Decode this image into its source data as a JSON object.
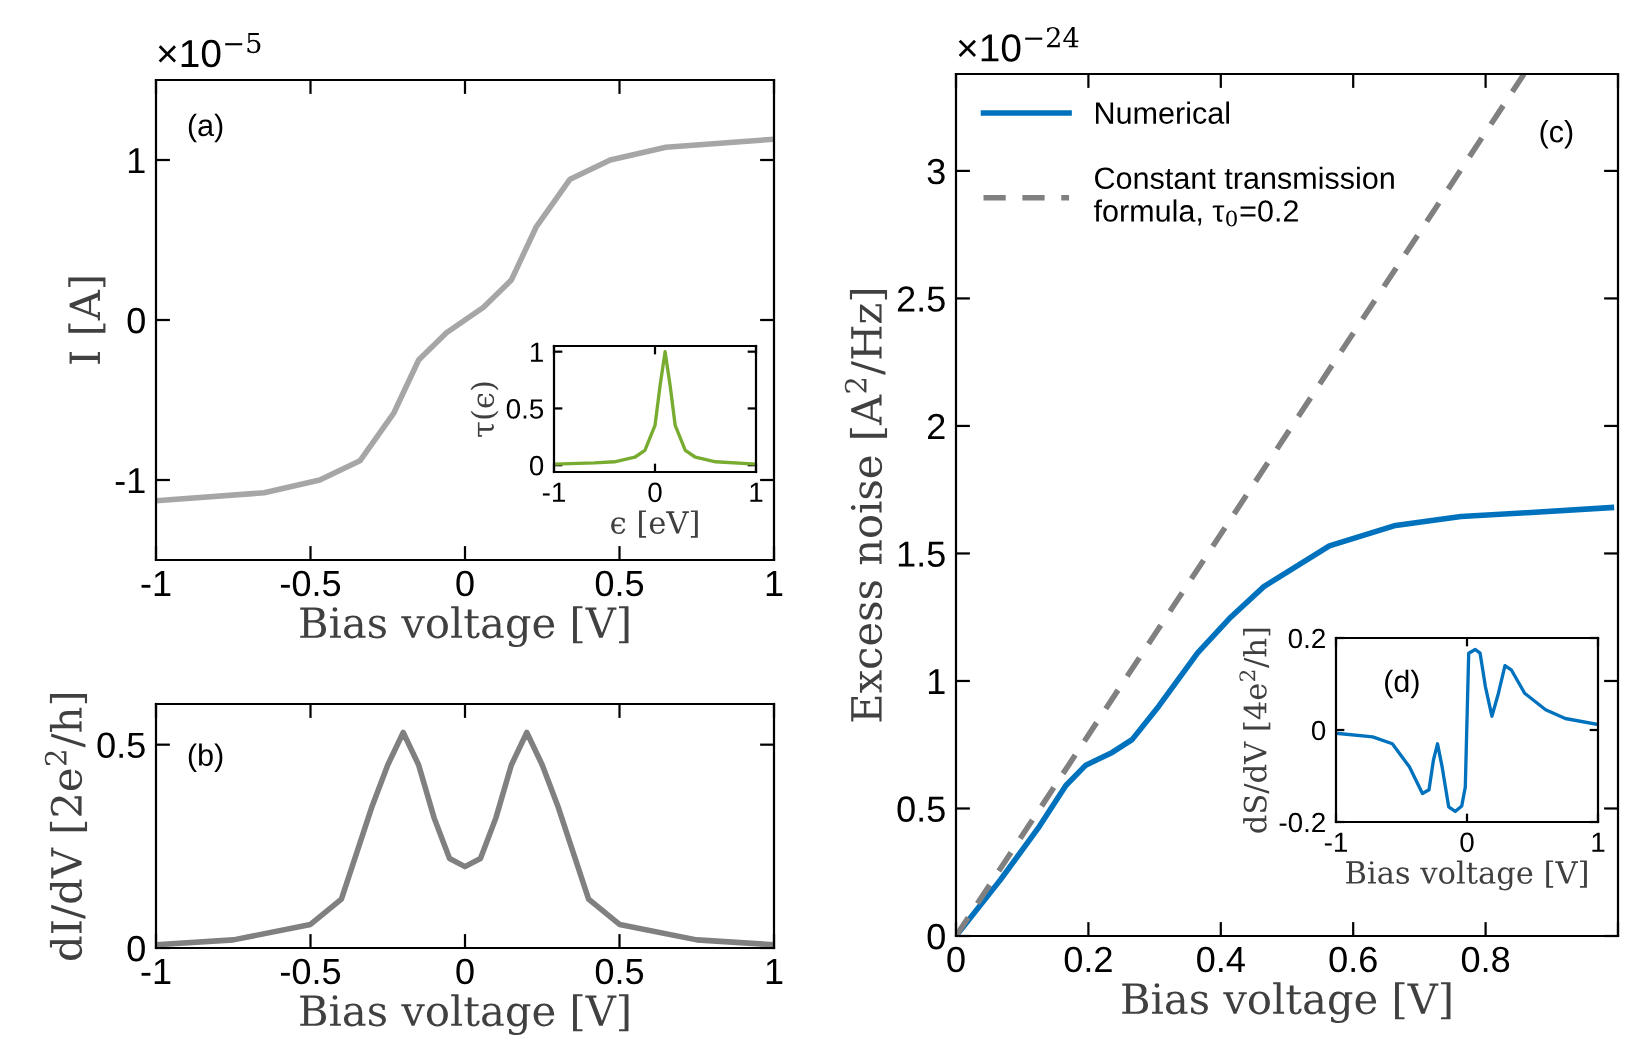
{
  "chart_data": [
    {
      "type": "line",
      "xlabel": "Bias voltage [V]",
      "ylabel": "I [A]",
      "annotations": [
        "(a)",
        "×10$^{−5}$"
      ],
      "xlim": [
        -1,
        1
      ],
      "ylim": [
        -1.5,
        1.5
      ],
      "xticks": [
        -1,
        -0.5,
        0,
        0.5,
        1
      ],
      "yticks": [
        -1,
        0,
        1
      ],
      "series": [
        {
          "color": "#a6a6a6",
          "x": [
            -1,
            -0.65,
            -0.47,
            -0.34,
            -0.23,
            -0.15,
            -0.06,
            0,
            0.06,
            0.15,
            0.23,
            0.34,
            0.47,
            0.65,
            1
          ],
          "values": [
            -1.13,
            -1.08,
            -1.0,
            -0.88,
            -0.58,
            -0.25,
            -0.08,
            0,
            0.08,
            0.25,
            0.58,
            0.88,
            1.0,
            1.08,
            1.13
          ]
        }
      ]
    },
    {
      "type": "line",
      "xlabel": "ϵ [eV]",
      "ylabel": "τ(ϵ)",
      "xlim": [
        -1,
        1
      ],
      "ylim": [
        -0.06,
        1.05
      ],
      "xticks": [
        -1,
        0,
        1
      ],
      "yticks": [
        0,
        0.5,
        1
      ],
      "series": [
        {
          "color": "#77ac30",
          "x": [
            -1,
            -0.6,
            -0.4,
            -0.2,
            -0.1,
            0,
            0.05,
            0.1,
            0.15,
            0.2,
            0.3,
            0.4,
            0.6,
            1
          ],
          "values": [
            0.01,
            0.02,
            0.03,
            0.07,
            0.13,
            0.35,
            0.7,
            1.0,
            0.7,
            0.35,
            0.13,
            0.07,
            0.03,
            0.01
          ]
        }
      ]
    },
    {
      "type": "line",
      "xlabel": "Bias voltage [V]",
      "ylabel": "dI/dV [2e$^{2}$/h]",
      "annotations": [
        "(b)"
      ],
      "xlim": [
        -1,
        1
      ],
      "ylim": [
        0,
        0.6
      ],
      "xticks": [
        -1,
        -0.5,
        0,
        0.5,
        1
      ],
      "yticks": [
        0,
        0.5
      ],
      "series": [
        {
          "color": "#808080",
          "x": [
            -1,
            -0.75,
            -0.5,
            -0.4,
            -0.3,
            -0.25,
            -0.2,
            -0.15,
            -0.1,
            -0.05,
            0,
            0.05,
            0.1,
            0.15,
            0.2,
            0.25,
            0.3,
            0.4,
            0.5,
            0.75,
            1
          ],
          "values": [
            0.008,
            0.02,
            0.058,
            0.12,
            0.35,
            0.45,
            0.53,
            0.45,
            0.32,
            0.22,
            0.2,
            0.22,
            0.32,
            0.45,
            0.53,
            0.45,
            0.35,
            0.12,
            0.058,
            0.02,
            0.008
          ]
        }
      ]
    },
    {
      "type": "line",
      "xlabel": "Bias voltage [V]",
      "ylabel": "Excess noise [A$^{2}$/Hz]",
      "annotations": [
        "(c)",
        "×10$^{−24}$"
      ],
      "xlim": [
        0,
        1
      ],
      "ylim": [
        0,
        3.38
      ],
      "xticks": [
        0,
        0.2,
        0.4,
        0.6,
        0.8,
        {
          "value": 1,
          "label": null
        }
      ],
      "yticks": [
        0,
        0.5,
        1,
        1.5,
        2,
        2.5,
        3
      ],
      "legend": "top left",
      "series": [
        {
          "name": "Numerical",
          "color": "#0072bd",
          "line_style": "solid",
          "x": [
            0,
            0.067,
            0.126,
            0.166,
            0.196,
            0.236,
            0.266,
            0.306,
            0.365,
            0.415,
            0.465,
            0.564,
            0.664,
            0.763,
            0.863,
            0.99
          ],
          "values": [
            0,
            0.22,
            0.43,
            0.59,
            0.67,
            0.72,
            0.77,
            0.9,
            1.11,
            1.25,
            1.37,
            1.53,
            1.61,
            1.645,
            1.66,
            1.68
          ]
        },
        {
          "name": "Constant transmission\nformula, τ$_{0}$=0.2",
          "color": "#808080",
          "line_style": "dashed",
          "x": [
            0,
            0.858
          ],
          "values": [
            0,
            3.38
          ]
        }
      ]
    },
    {
      "type": "line",
      "xlabel": "Bias voltage [V]",
      "ylabel": "dS/dV [4e$^{2}$/h]",
      "annotations": [
        "(d)"
      ],
      "xlim": [
        -1,
        1
      ],
      "ylim": [
        -0.2,
        0.2
      ],
      "xticks": [
        -1,
        0,
        1
      ],
      "yticks": [
        -0.2,
        0,
        0.2
      ],
      "series": [
        {
          "color": "#0072bd",
          "x": [
            -1,
            -0.72,
            -0.57,
            -0.44,
            -0.34,
            -0.29,
            -0.256,
            -0.225,
            -0.19,
            -0.14,
            -0.09,
            -0.04,
            -0.013,
            0.013,
            0.063,
            0.1,
            0.14,
            0.19,
            0.24,
            0.29,
            0.34,
            0.44,
            0.6,
            0.75,
            1
          ],
          "values": [
            -0.007,
            -0.015,
            -0.03,
            -0.08,
            -0.138,
            -0.13,
            -0.065,
            -0.03,
            -0.08,
            -0.167,
            -0.177,
            -0.165,
            -0.124,
            0.167,
            0.175,
            0.167,
            0.095,
            0.03,
            0.08,
            0.14,
            0.13,
            0.08,
            0.044,
            0.025,
            0.012
          ]
        }
      ]
    }
  ]
}
